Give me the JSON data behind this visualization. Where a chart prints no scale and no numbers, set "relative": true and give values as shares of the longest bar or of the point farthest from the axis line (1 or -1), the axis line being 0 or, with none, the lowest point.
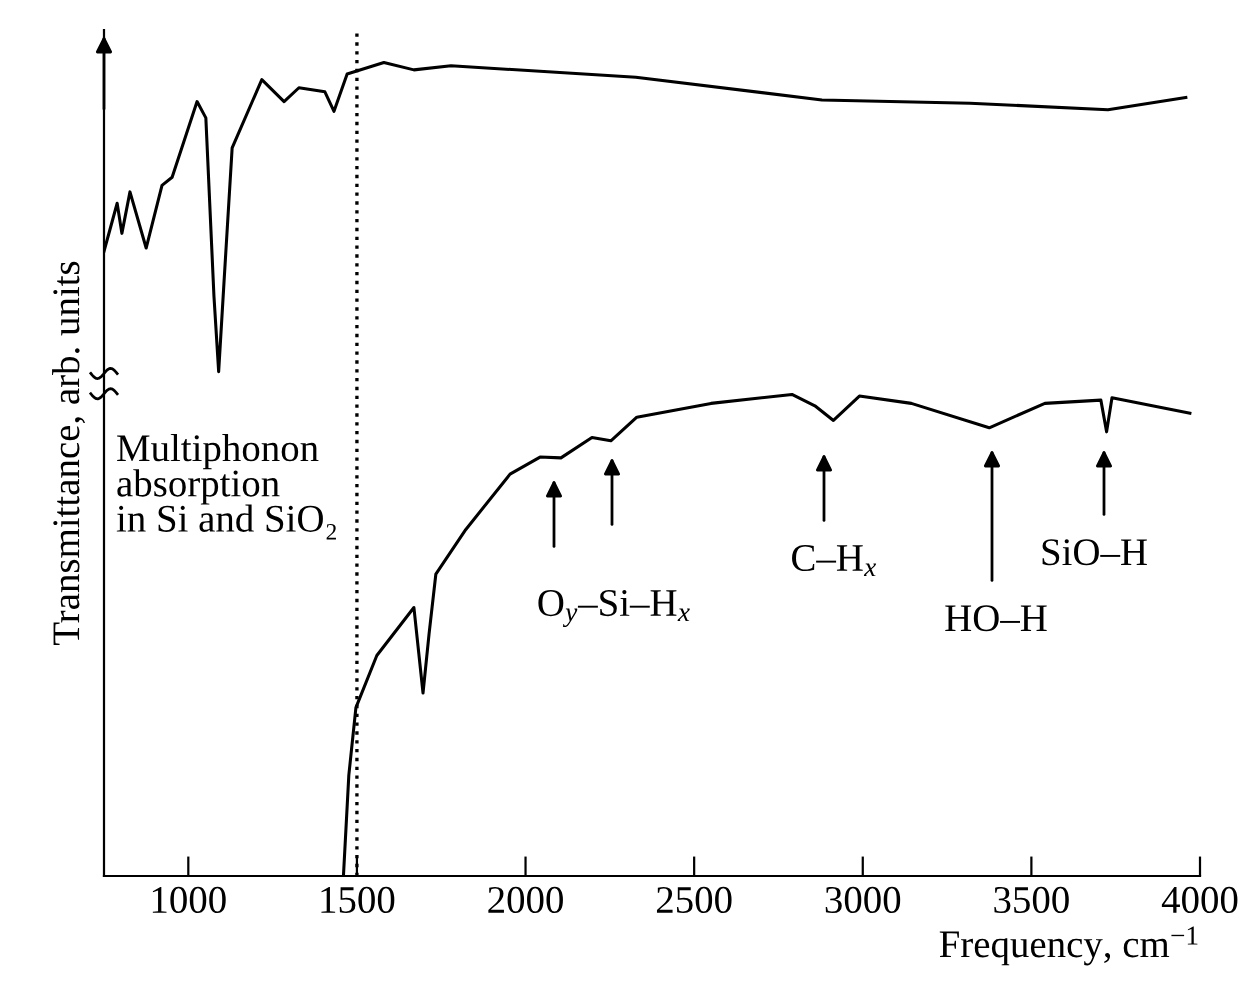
{
  "chart_data": {
    "type": "line",
    "relative": true,
    "xlabel": "Frequency, cm$^{−1}$",
    "ylabel": "Transmittance, arb. units",
    "xlim": [
      750,
      4000
    ],
    "xticks": [
      1000,
      1500,
      2000,
      2500,
      3000,
      3500,
      4000
    ],
    "grid": false,
    "tick_labels": "x",
    "series": [
      {
        "color": "#000000",
        "x": [
          750,
          789,
          803,
          827,
          875,
          922,
          952,
          1026,
          1052,
          1076,
          1090,
          1106,
          1130,
          1218,
          1284,
          1328,
          1405,
          1432,
          1471,
          1580,
          1669,
          1779,
          2327,
          2879,
          3318,
          3727,
          3958
        ],
        "values": [
          0.768,
          0.827,
          0.79,
          0.841,
          0.772,
          0.849,
          0.859,
          0.952,
          0.932,
          0.713,
          0.62,
          0.731,
          0.895,
          0.979,
          0.952,
          0.969,
          0.964,
          0.94,
          0.986,
          1.0,
          0.991,
          0.996,
          0.982,
          0.954,
          0.95,
          0.942,
          0.957
        ]
      },
      {
        "color": "#000000",
        "x": [
          1460,
          1476,
          1497,
          1559,
          1669,
          1696,
          1714,
          1734,
          1823,
          1954,
          2043,
          2105,
          2197,
          2253,
          2330,
          2550,
          2790,
          2858,
          2913,
          2990,
          3144,
          3375,
          3540,
          3706,
          3723,
          3739,
          3970
        ],
        "values": [
          0.0,
          0.124,
          0.207,
          0.271,
          0.33,
          0.225,
          0.298,
          0.371,
          0.426,
          0.494,
          0.515,
          0.514,
          0.539,
          0.535,
          0.564,
          0.581,
          0.592,
          0.578,
          0.56,
          0.59,
          0.581,
          0.551,
          0.581,
          0.585,
          0.546,
          0.588,
          0.569
        ]
      }
    ],
    "ref_lines": [
      {
        "axis": "x",
        "value": 1500,
        "line_style": "dotted",
        "color": "#000000"
      }
    ],
    "annotations": [
      "Multiphonon\nabsorption\nin Si and SiO₂",
      "O$_{y}$–Si–H$_{x}$",
      "C–H$_{x}$",
      "HO–H",
      "SiO–H"
    ]
  }
}
